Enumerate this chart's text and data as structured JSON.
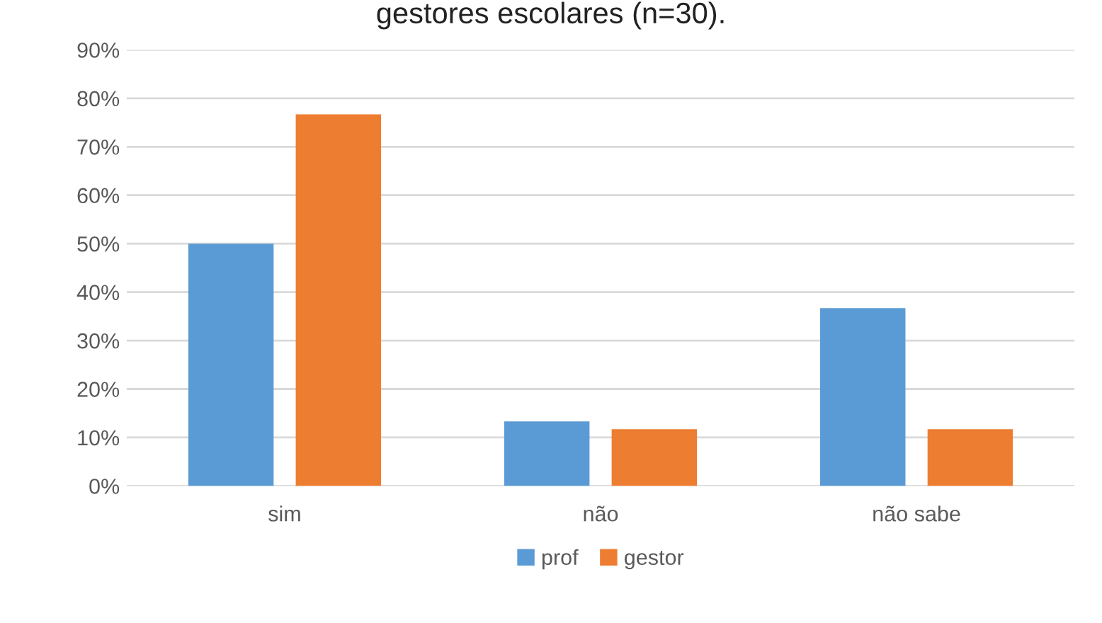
{
  "chart_data": {
    "type": "bar",
    "title": "gestores escolares (n=30).",
    "categories": [
      "sim",
      "não",
      "não sabe"
    ],
    "series": [
      {
        "name": "prof",
        "color": "#5b9bd5",
        "values": [
          50,
          13.3,
          36.7
        ]
      },
      {
        "name": "gestor",
        "color": "#ed7d31",
        "values": [
          76.7,
          11.7,
          11.7
        ]
      }
    ],
    "ylim": [
      0,
      90
    ],
    "yticks": [
      {
        "value": 0,
        "label": "0%"
      },
      {
        "value": 10,
        "label": "10%"
      },
      {
        "value": 20,
        "label": "20%"
      },
      {
        "value": 30,
        "label": "30%"
      },
      {
        "value": 40,
        "label": "40%"
      },
      {
        "value": 50,
        "label": "50%"
      },
      {
        "value": 60,
        "label": "60%"
      },
      {
        "value": 70,
        "label": "70%"
      },
      {
        "value": 80,
        "label": "80%"
      },
      {
        "value": 90,
        "label": "90%"
      }
    ],
    "grid": "y",
    "legend": "bottom"
  }
}
